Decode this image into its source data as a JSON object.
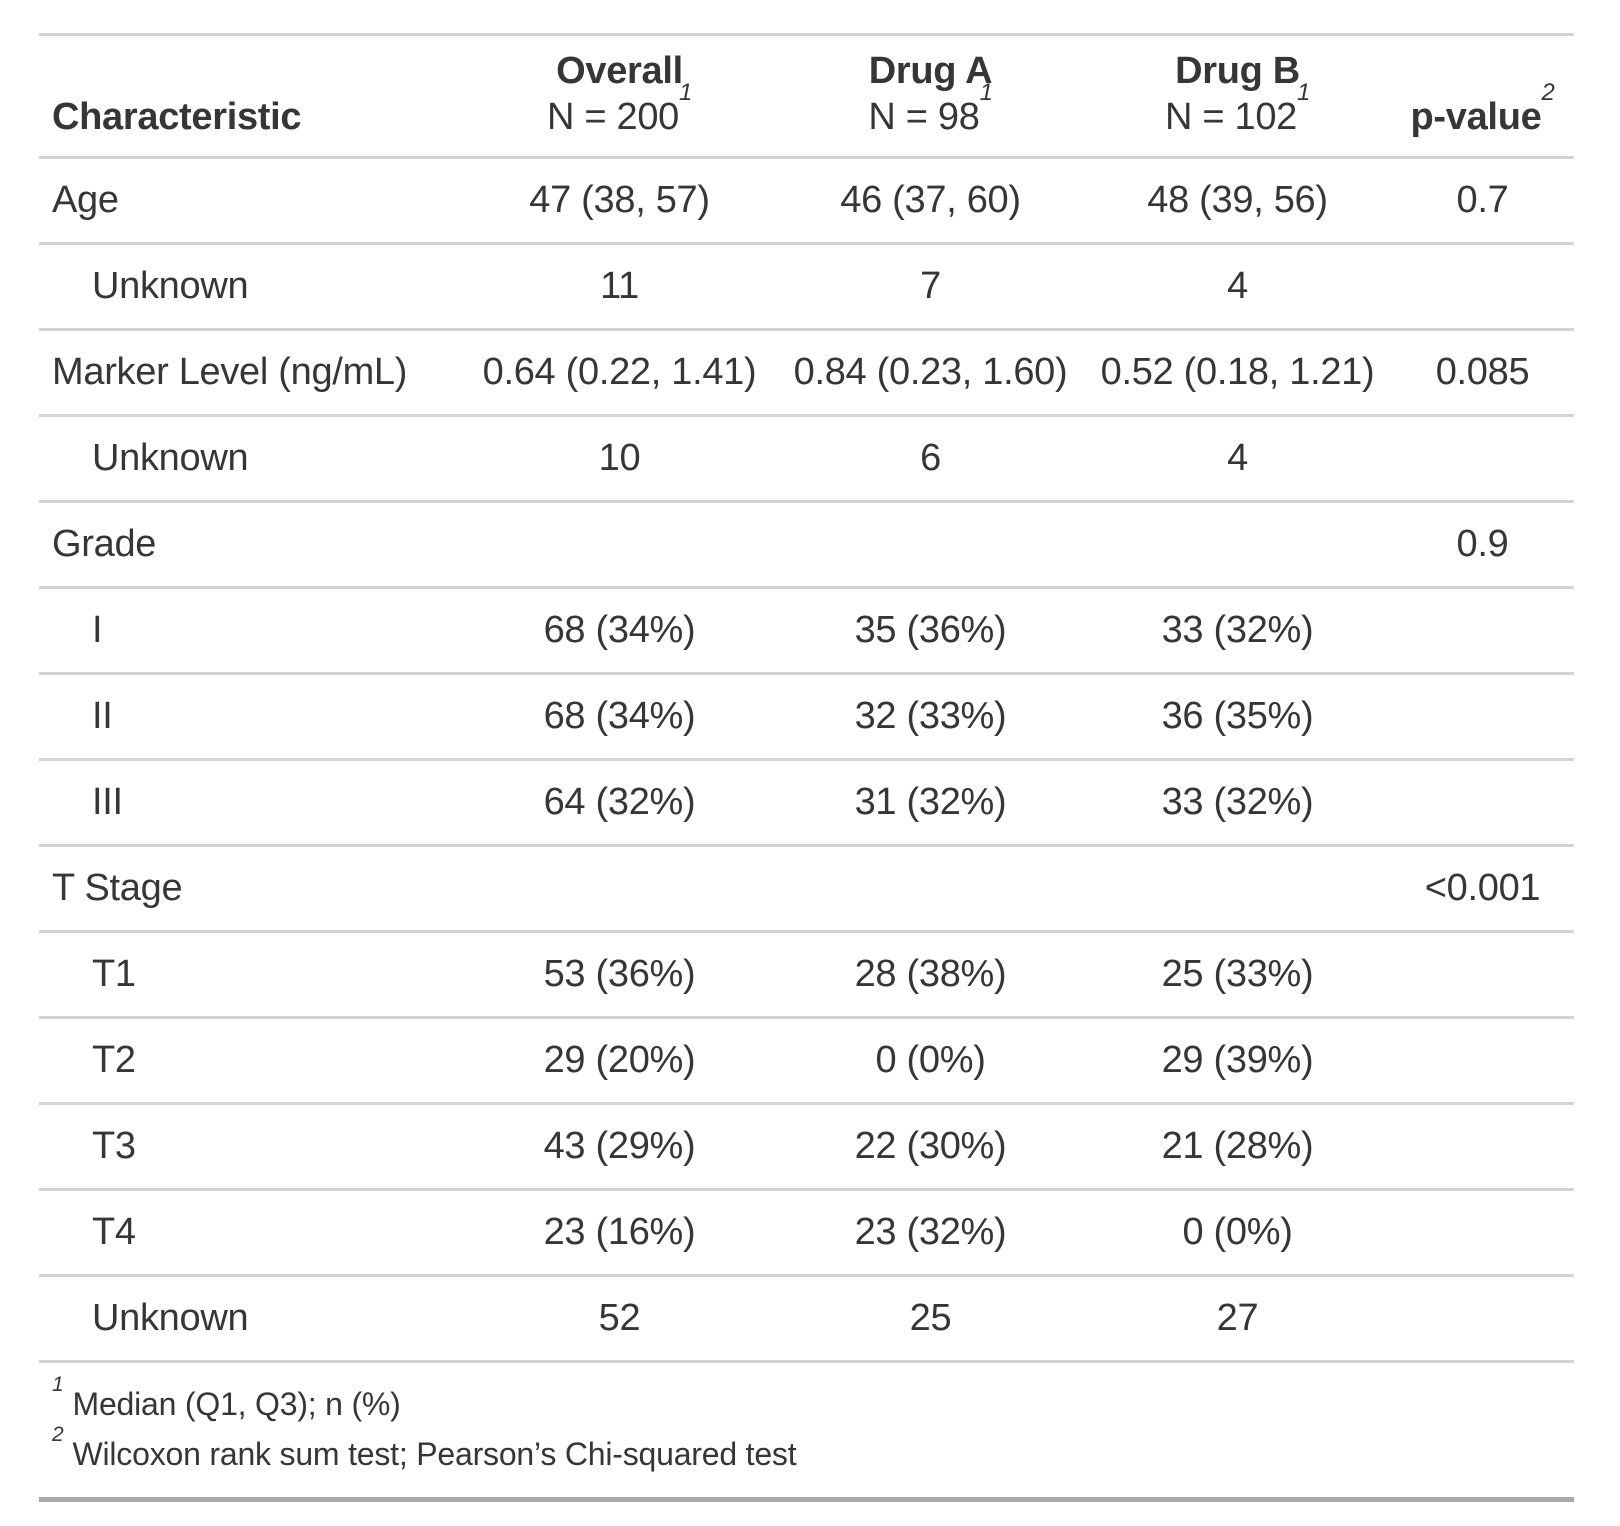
{
  "chart_data": {
    "type": "table",
    "columns": [
      {
        "label": "Characteristic",
        "sublabel": "",
        "footnote_mark": ""
      },
      {
        "label": "Overall",
        "sublabel": "N = 200",
        "footnote_mark": "1"
      },
      {
        "label": "Drug A",
        "sublabel": "N = 98",
        "footnote_mark": "1"
      },
      {
        "label": "Drug B",
        "sublabel": "N = 102",
        "footnote_mark": "1"
      },
      {
        "label": "p-value",
        "sublabel": "",
        "footnote_mark": "2"
      }
    ],
    "rows": [
      {
        "label": "Age",
        "indent": false,
        "values": [
          "47 (38, 57)",
          "46 (37, 60)",
          "48 (39, 56)",
          "0.7"
        ]
      },
      {
        "label": "Unknown",
        "indent": true,
        "values": [
          "11",
          "7",
          "4",
          ""
        ]
      },
      {
        "label": "Marker Level (ng/mL)",
        "indent": false,
        "values": [
          "0.64 (0.22, 1.41)",
          "0.84 (0.23, 1.60)",
          "0.52 (0.18, 1.21)",
          "0.085"
        ]
      },
      {
        "label": "Unknown",
        "indent": true,
        "values": [
          "10",
          "6",
          "4",
          ""
        ]
      },
      {
        "label": "Grade",
        "indent": false,
        "values": [
          "",
          "",
          "",
          "0.9"
        ]
      },
      {
        "label": "I",
        "indent": true,
        "values": [
          "68 (34%)",
          "35 (36%)",
          "33 (32%)",
          ""
        ]
      },
      {
        "label": "II",
        "indent": true,
        "values": [
          "68 (34%)",
          "32 (33%)",
          "36 (35%)",
          ""
        ]
      },
      {
        "label": "III",
        "indent": true,
        "values": [
          "64 (32%)",
          "31 (32%)",
          "33 (32%)",
          ""
        ]
      },
      {
        "label": "T Stage",
        "indent": false,
        "values": [
          "",
          "",
          "",
          "<0.001"
        ]
      },
      {
        "label": "T1",
        "indent": true,
        "values": [
          "53 (36%)",
          "28 (38%)",
          "25 (33%)",
          ""
        ]
      },
      {
        "label": "T2",
        "indent": true,
        "values": [
          "29 (20%)",
          "0 (0%)",
          "29 (39%)",
          ""
        ]
      },
      {
        "label": "T3",
        "indent": true,
        "values": [
          "43 (29%)",
          "22 (30%)",
          "21 (28%)",
          ""
        ]
      },
      {
        "label": "T4",
        "indent": true,
        "values": [
          "23 (16%)",
          "23 (32%)",
          "0 (0%)",
          ""
        ]
      },
      {
        "label": "Unknown",
        "indent": true,
        "values": [
          "52",
          "25",
          "27",
          ""
        ]
      }
    ],
    "footnotes": [
      {
        "marker": "1",
        "text": "Median (Q1, Q3); n (%)"
      },
      {
        "marker": "2",
        "text": "Wilcoxon rank sum test; Pearson’s Chi-squared test"
      }
    ],
    "layout_hints": {
      "value_alignment": "center",
      "label_alignment": "left",
      "grid": "horizontal-rules-only"
    }
  },
  "colors": {
    "text": "#363636",
    "border_light": "#D3D3D3",
    "border_dark": "#A8A8A8",
    "background": "#FFFFFF"
  }
}
